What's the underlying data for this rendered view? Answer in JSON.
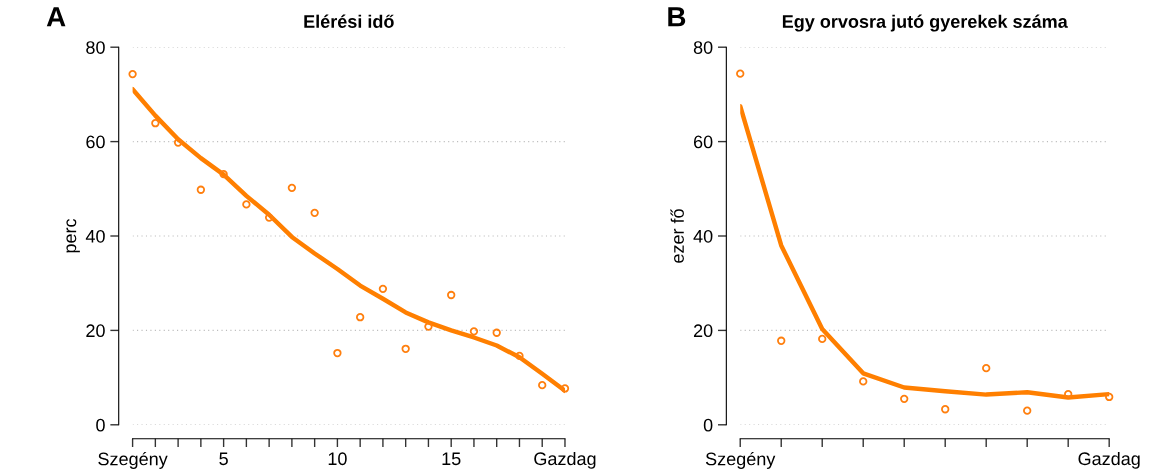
{
  "chart_data": [
    {
      "type": "scatter",
      "title": "Elérési idő",
      "ylabel": "perc",
      "annotations": [
        "A"
      ],
      "x": [
        1,
        2,
        3,
        4,
        5,
        6,
        7,
        8,
        9,
        10,
        11,
        12,
        13,
        14,
        15,
        16,
        17,
        18,
        19,
        20
      ],
      "xlim": [
        1,
        20
      ],
      "ylim": [
        0,
        80
      ],
      "yticks": [
        0,
        20,
        40,
        60,
        80
      ],
      "xticks": [
        {
          "value": 1,
          "label": "Szegény"
        },
        5,
        10,
        15,
        {
          "value": 20,
          "label": "Gazdag"
        }
      ],
      "grid": "y",
      "series": [
        {
          "marker": "circle",
          "color": "#ff7f0e",
          "values": [
            74.3,
            63.9,
            59.8,
            49.8,
            53.1,
            46.7,
            43.9,
            50.2,
            44.9,
            15.2,
            22.8,
            28.8,
            16.1,
            20.8,
            27.5,
            19.8,
            19.5,
            14.6,
            8.4,
            7.7
          ]
        },
        {
          "type": "line",
          "color": "#ff7f00",
          "values": [
            71.1,
            65.5,
            60.5,
            56.5,
            53,
            48.5,
            44.5,
            39.8,
            36.3,
            33,
            29.5,
            26.7,
            23.8,
            21.7,
            20,
            18.5,
            16.8,
            14.3,
            10.8,
            7.2
          ]
        }
      ]
    },
    {
      "type": "scatter",
      "title": "Egy orvosra jutó gyerekek száma",
      "ylabel": "ezer fő",
      "annotations": [
        "B"
      ],
      "categories": [
        "Szegény",
        null,
        null,
        null,
        null,
        null,
        null,
        null,
        null,
        "Gazdag"
      ],
      "ylim": [
        0,
        80
      ],
      "yticks": [
        0,
        20,
        40,
        60,
        80
      ],
      "grid": "y",
      "series": [
        {
          "marker": "circle",
          "color": "#ff7f0e",
          "values": [
            74.4,
            17.8,
            18.2,
            9.2,
            5.5,
            3.3,
            12.0,
            3.0,
            6.5,
            5.9
          ]
        },
        {
          "type": "line",
          "color": "#ff7f00",
          "values": [
            67.5,
            38.0,
            20.3,
            10.9,
            7.9,
            7.1,
            6.4,
            6.9,
            5.8,
            6.5
          ]
        }
      ]
    }
  ]
}
